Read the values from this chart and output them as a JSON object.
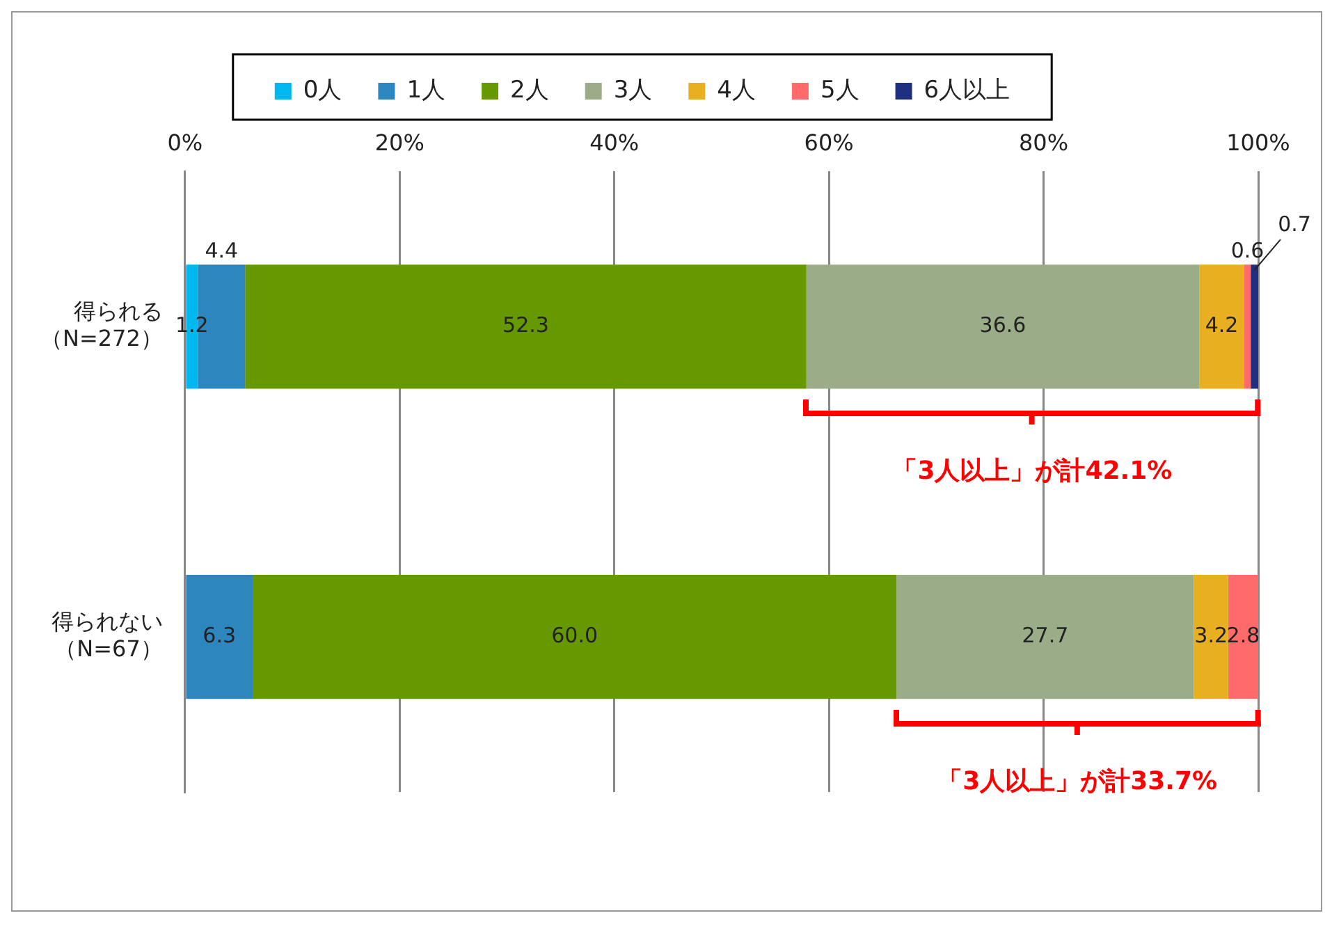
{
  "chart_data": {
    "type": "bar",
    "orientation": "horizontal",
    "stacked": true,
    "categories": [
      "得られる（N=272）",
      "得られない（N=67）"
    ],
    "series": [
      {
        "name": "0人",
        "color": "#00b8f0",
        "values": [
          1.2,
          null
        ],
        "value_labels": [
          "1.2",
          null
        ]
      },
      {
        "name": "1人",
        "color": "#2e86be",
        "values": [
          4.4,
          6.3
        ],
        "value_labels": [
          "4.4",
          "6.3"
        ]
      },
      {
        "name": "2人",
        "color": "#669900",
        "values": [
          52.3,
          60.0
        ],
        "value_labels": [
          "52.3",
          "60.0"
        ]
      },
      {
        "name": "3人",
        "color": "#9bad88",
        "values": [
          36.6,
          27.7
        ],
        "value_labels": [
          "36.6",
          "27.7"
        ]
      },
      {
        "name": "4人",
        "color": "#e8b020",
        "values": [
          4.2,
          3.2
        ],
        "value_labels": [
          "4.2",
          "3.2"
        ]
      },
      {
        "name": "5人",
        "color": "#ff6b6b",
        "values": [
          0.6,
          2.8
        ],
        "value_labels": [
          "0.6",
          "2.8"
        ]
      },
      {
        "name": "6人以上",
        "color": "#1f2f7f",
        "values": [
          0.7,
          null
        ],
        "value_labels": [
          "0.7",
          null
        ]
      }
    ],
    "xlim": [
      0,
      100
    ],
    "xticks": [
      {
        "value": 0,
        "label": "0%"
      },
      {
        "value": 20,
        "label": "20%"
      },
      {
        "value": 40,
        "label": "40%"
      },
      {
        "value": 60,
        "label": "60%"
      },
      {
        "value": 80,
        "label": "80%"
      },
      {
        "value": 100,
        "label": "100%"
      }
    ],
    "grid": "x",
    "legend": "top",
    "annotations": [
      "「3人以上」が計42.1%",
      "「3人以上」が計33.7%"
    ]
  }
}
